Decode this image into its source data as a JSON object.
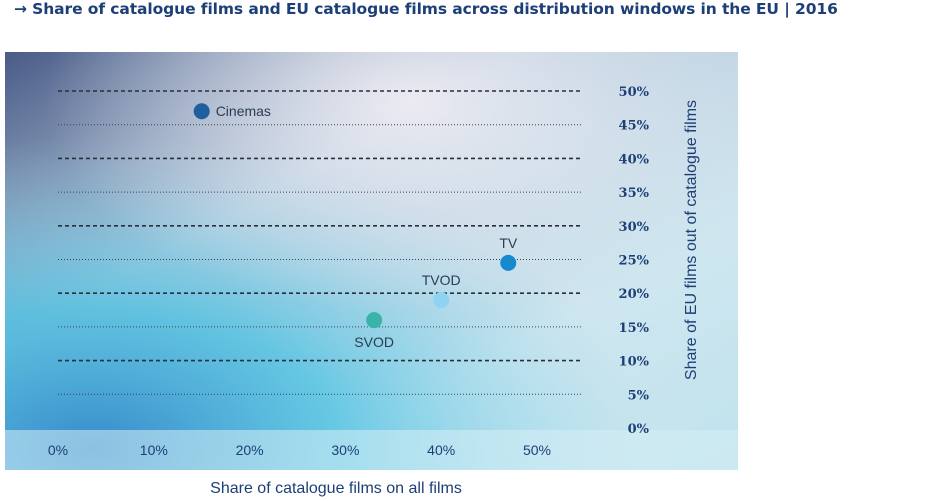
{
  "title": "→ Share of catalogue films and EU catalogue films across distribution windows in the EU | 2016",
  "chart_data": {
    "type": "scatter",
    "xlabel": "Share of catalogue films on all films",
    "ylabel": "Share of EU films out of catalogue films",
    "xlim": [
      0,
      50
    ],
    "ylim": [
      0,
      50
    ],
    "x_ticks": [
      "0%",
      "10%",
      "20%",
      "30%",
      "40%",
      "50%"
    ],
    "y_ticks": [
      "0%",
      "5%",
      "10%",
      "15%",
      "20%",
      "25%",
      "30%",
      "35%",
      "40%",
      "45%",
      "50%"
    ],
    "grid": true,
    "points": [
      {
        "label": "Cinemas",
        "x": 15,
        "y": 47,
        "color": "#1f5f9e",
        "label_pos": "right"
      },
      {
        "label": "TV",
        "x": 47,
        "y": 24.5,
        "color": "#1689cf",
        "label_pos": "top"
      },
      {
        "label": "TVOD",
        "x": 40,
        "y": 19,
        "color": "#8fd3f2",
        "label_pos": "top"
      },
      {
        "label": "SVOD",
        "x": 33,
        "y": 16,
        "color": "#3ab3a8",
        "label_pos": "bottom"
      }
    ]
  }
}
